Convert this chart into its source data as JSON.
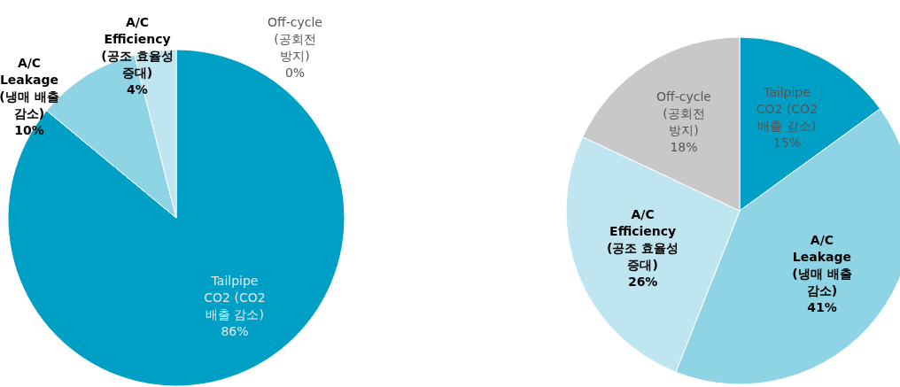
{
  "chart_data": [
    {
      "type": "pie",
      "categories": [
        "Tailpipe\nCO2 (CO2\n배출 감소)",
        "A/C\nLeakage\n(냉매 배출\n감소)",
        "A/C\nEfficiency\n(공조 효율성\n증대)",
        "Off-cycle\n(공회전\n방지)"
      ],
      "values": [
        86,
        10,
        4,
        0
      ],
      "value_labels": [
        "86%",
        "10%",
        "4%",
        "0%"
      ],
      "colors": [
        "#00a0c6",
        "#8fd4e4",
        "#bfe6f0",
        "#c8c8c8"
      ]
    },
    {
      "type": "pie",
      "categories": [
        "Tailpipe\nCO2 (CO2\n배출 감소)",
        "A/C\nLeakage\n(냉매 배출\n감소)",
        "A/C\nEfficiency\n(공조 효율성\n증대)",
        "Off-cycle\n(공회전\n방지)"
      ],
      "values": [
        15,
        41,
        26,
        18
      ],
      "value_labels": [
        "15%",
        "41%",
        "26%",
        "18%"
      ],
      "colors": [
        "#00a0c6",
        "#8fd4e4",
        "#bfe6f0",
        "#c8c8c8"
      ]
    }
  ]
}
